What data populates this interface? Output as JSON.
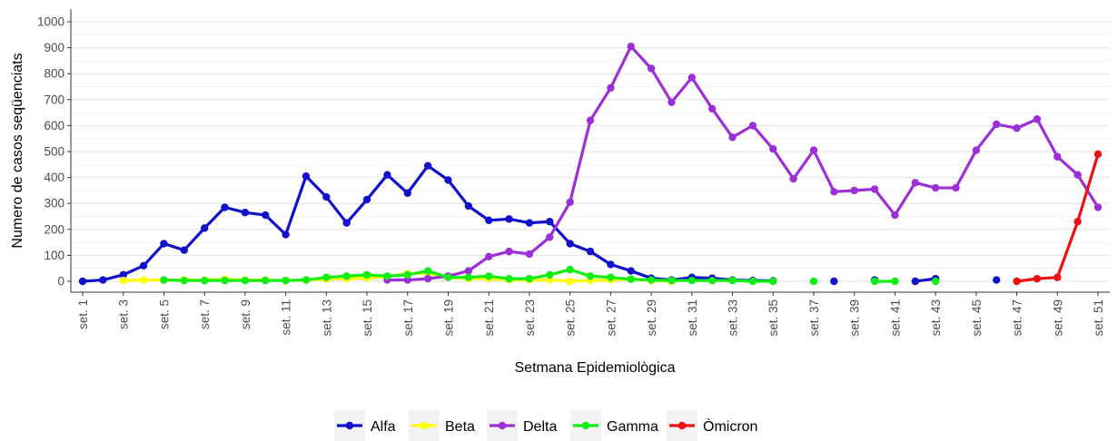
{
  "chart_data": {
    "type": "line",
    "title": "",
    "xlabel": "Setmana Epidemiològica",
    "ylabel": "Numero de casos seqüenciats",
    "ylim": [
      0,
      1000
    ],
    "yticks": [
      0,
      100,
      200,
      300,
      400,
      500,
      600,
      700,
      800,
      900,
      1000
    ],
    "categories": [
      "set. 1",
      "set. 2",
      "set. 3",
      "set. 4",
      "set. 5",
      "set. 6",
      "set. 7",
      "set. 8",
      "set. 9",
      "set. 10",
      "set. 11",
      "set. 12",
      "set. 13",
      "set. 14",
      "set. 15",
      "set. 16",
      "set. 17",
      "set. 18",
      "set. 19",
      "set. 20",
      "set. 21",
      "set. 22",
      "set. 23",
      "set. 24",
      "set. 25",
      "set. 26",
      "set. 27",
      "set. 28",
      "set. 29",
      "set. 30",
      "set. 31",
      "set. 32",
      "set. 33",
      "set. 34",
      "set. 35",
      "set. 36",
      "set. 37",
      "set. 38",
      "set. 39",
      "set. 40",
      "set. 41",
      "set. 42",
      "set. 43",
      "set. 44",
      "set. 45",
      "set. 46",
      "set. 47",
      "set. 48",
      "set. 49",
      "set. 50",
      "set. 51"
    ],
    "shown_tick_labels": [
      "set. 1",
      "set. 3",
      "set. 5",
      "set. 7",
      "set. 9",
      "set. 11",
      "set. 13",
      "set. 15",
      "set. 17",
      "set. 19",
      "set. 21",
      "set. 23",
      "set. 25",
      "set. 27",
      "set. 29",
      "set. 31",
      "set. 33",
      "set. 35",
      "set. 37",
      "set. 39",
      "set. 41",
      "set. 43",
      "set. 45",
      "set. 47",
      "set. 49",
      "set. 51"
    ],
    "grid": true,
    "legend_position": "bottom",
    "series": [
      {
        "name": "Alfa",
        "color": "#1111cc",
        "values": [
          0,
          5,
          25,
          60,
          145,
          120,
          205,
          285,
          265,
          255,
          180,
          405,
          325,
          225,
          315,
          410,
          340,
          445,
          390,
          290,
          235,
          240,
          225,
          230,
          145,
          115,
          65,
          40,
          12,
          5,
          15,
          12,
          5,
          3,
          2,
          null,
          null,
          0,
          null,
          5,
          null,
          0,
          10,
          null,
          null,
          5,
          null,
          null,
          null,
          null,
          null
        ]
      },
      {
        "name": "Beta",
        "color": "#ffff00",
        "values": [
          null,
          null,
          3,
          5,
          5,
          5,
          5,
          8,
          5,
          5,
          3,
          5,
          8,
          10,
          12,
          18,
          30,
          30,
          15,
          10,
          10,
          5,
          5,
          5,
          0,
          3,
          5,
          8,
          3,
          0,
          null,
          null,
          null,
          null,
          null,
          null,
          null,
          null,
          null,
          null,
          null,
          null,
          null,
          null,
          null,
          null,
          null,
          null,
          null,
          null,
          null
        ]
      },
      {
        "name": "Delta",
        "color": "#9b30d9",
        "values": [
          null,
          null,
          null,
          null,
          null,
          null,
          null,
          null,
          null,
          null,
          null,
          null,
          null,
          null,
          null,
          5,
          5,
          10,
          20,
          40,
          95,
          115,
          105,
          170,
          305,
          620,
          745,
          905,
          820,
          690,
          785,
          665,
          555,
          600,
          510,
          395,
          505,
          345,
          350,
          355,
          255,
          380,
          360,
          360,
          505,
          605,
          590,
          625,
          480,
          410,
          285
        ]
      },
      {
        "name": "Gamma",
        "color": "#11ee11",
        "values": [
          null,
          null,
          null,
          null,
          5,
          3,
          3,
          3,
          3,
          3,
          3,
          5,
          15,
          20,
          25,
          20,
          25,
          40,
          15,
          15,
          20,
          10,
          10,
          25,
          45,
          20,
          15,
          8,
          5,
          3,
          3,
          3,
          3,
          0,
          0,
          null,
          0,
          null,
          null,
          0,
          0,
          null,
          0,
          null,
          null,
          null,
          null,
          null,
          null,
          null,
          null
        ]
      },
      {
        "name": "Òmicron",
        "color": "#ee1111",
        "values": [
          null,
          null,
          null,
          null,
          null,
          null,
          null,
          null,
          null,
          null,
          null,
          null,
          null,
          null,
          null,
          null,
          null,
          null,
          null,
          null,
          null,
          null,
          null,
          null,
          null,
          null,
          null,
          null,
          null,
          null,
          null,
          null,
          null,
          null,
          null,
          null,
          null,
          null,
          null,
          null,
          null,
          null,
          null,
          null,
          null,
          null,
          0,
          10,
          15,
          230,
          490
        ]
      }
    ]
  }
}
